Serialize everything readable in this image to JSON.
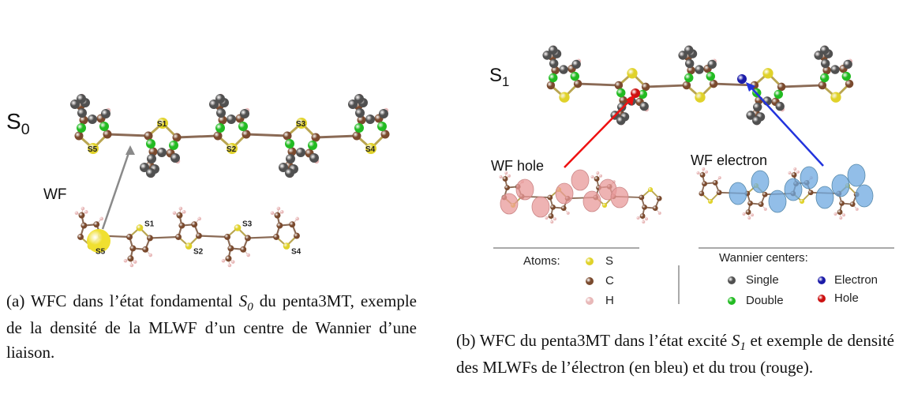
{
  "panel_a": {
    "state_label": "S",
    "state_sub": "0",
    "wf_label": "WF",
    "sulfur_labels": [
      "S1",
      "S2",
      "S3",
      "S4",
      "S5"
    ],
    "inset_sulfur_labels": [
      "S1",
      "S2",
      "S3",
      "S4",
      "S5"
    ],
    "caption_prefix": "(a) WFC dans l’état fondamental ",
    "caption_var": "S",
    "caption_var_sub": "0",
    "caption_suffix": " du penta3MT, exemple de la densité de la MLWF d’un centre de Wannier d’une liaison."
  },
  "panel_b": {
    "state_label": "S",
    "state_sub": "1",
    "wf_hole_label": "WF hole",
    "wf_electron_label": "WF electron",
    "atoms_legend": {
      "title": "Atoms:",
      "items": [
        {
          "label": "S",
          "color": "#e0d22a"
        },
        {
          "label": "C",
          "color": "#7a4a2e"
        },
        {
          "label": "H",
          "color": "#e8b8b8"
        }
      ]
    },
    "wannier_legend": {
      "title": "Wannier centers:",
      "items": [
        {
          "label": "Single",
          "color": "#505050"
        },
        {
          "label": "Electron",
          "color": "#1a1aa8"
        },
        {
          "label": "Double",
          "color": "#22bb22"
        },
        {
          "label": "Hole",
          "color": "#cc1111"
        }
      ]
    },
    "caption_prefix": "(b) WFC du penta3MT dans l’état excité ",
    "caption_var": "S",
    "caption_var_sub": "1",
    "caption_suffix": " et exemple de densité des MLWFs de l’électron (en bleu) et du trou (rouge)."
  },
  "colors": {
    "carbon": "#7a4a2e",
    "sulfur": "#e0d22a",
    "hydrogen": "#e8b8b8",
    "single_center": "#505050",
    "double_center": "#22bb22",
    "electron_center": "#1a1aa8",
    "hole_center": "#cc1111",
    "hole_density": "#e89a9a",
    "electron_density": "#6ea8e0",
    "arrow_gray": "#8a8a8a",
    "arrow_red": "#ee1111",
    "arrow_blue": "#2233dd"
  }
}
